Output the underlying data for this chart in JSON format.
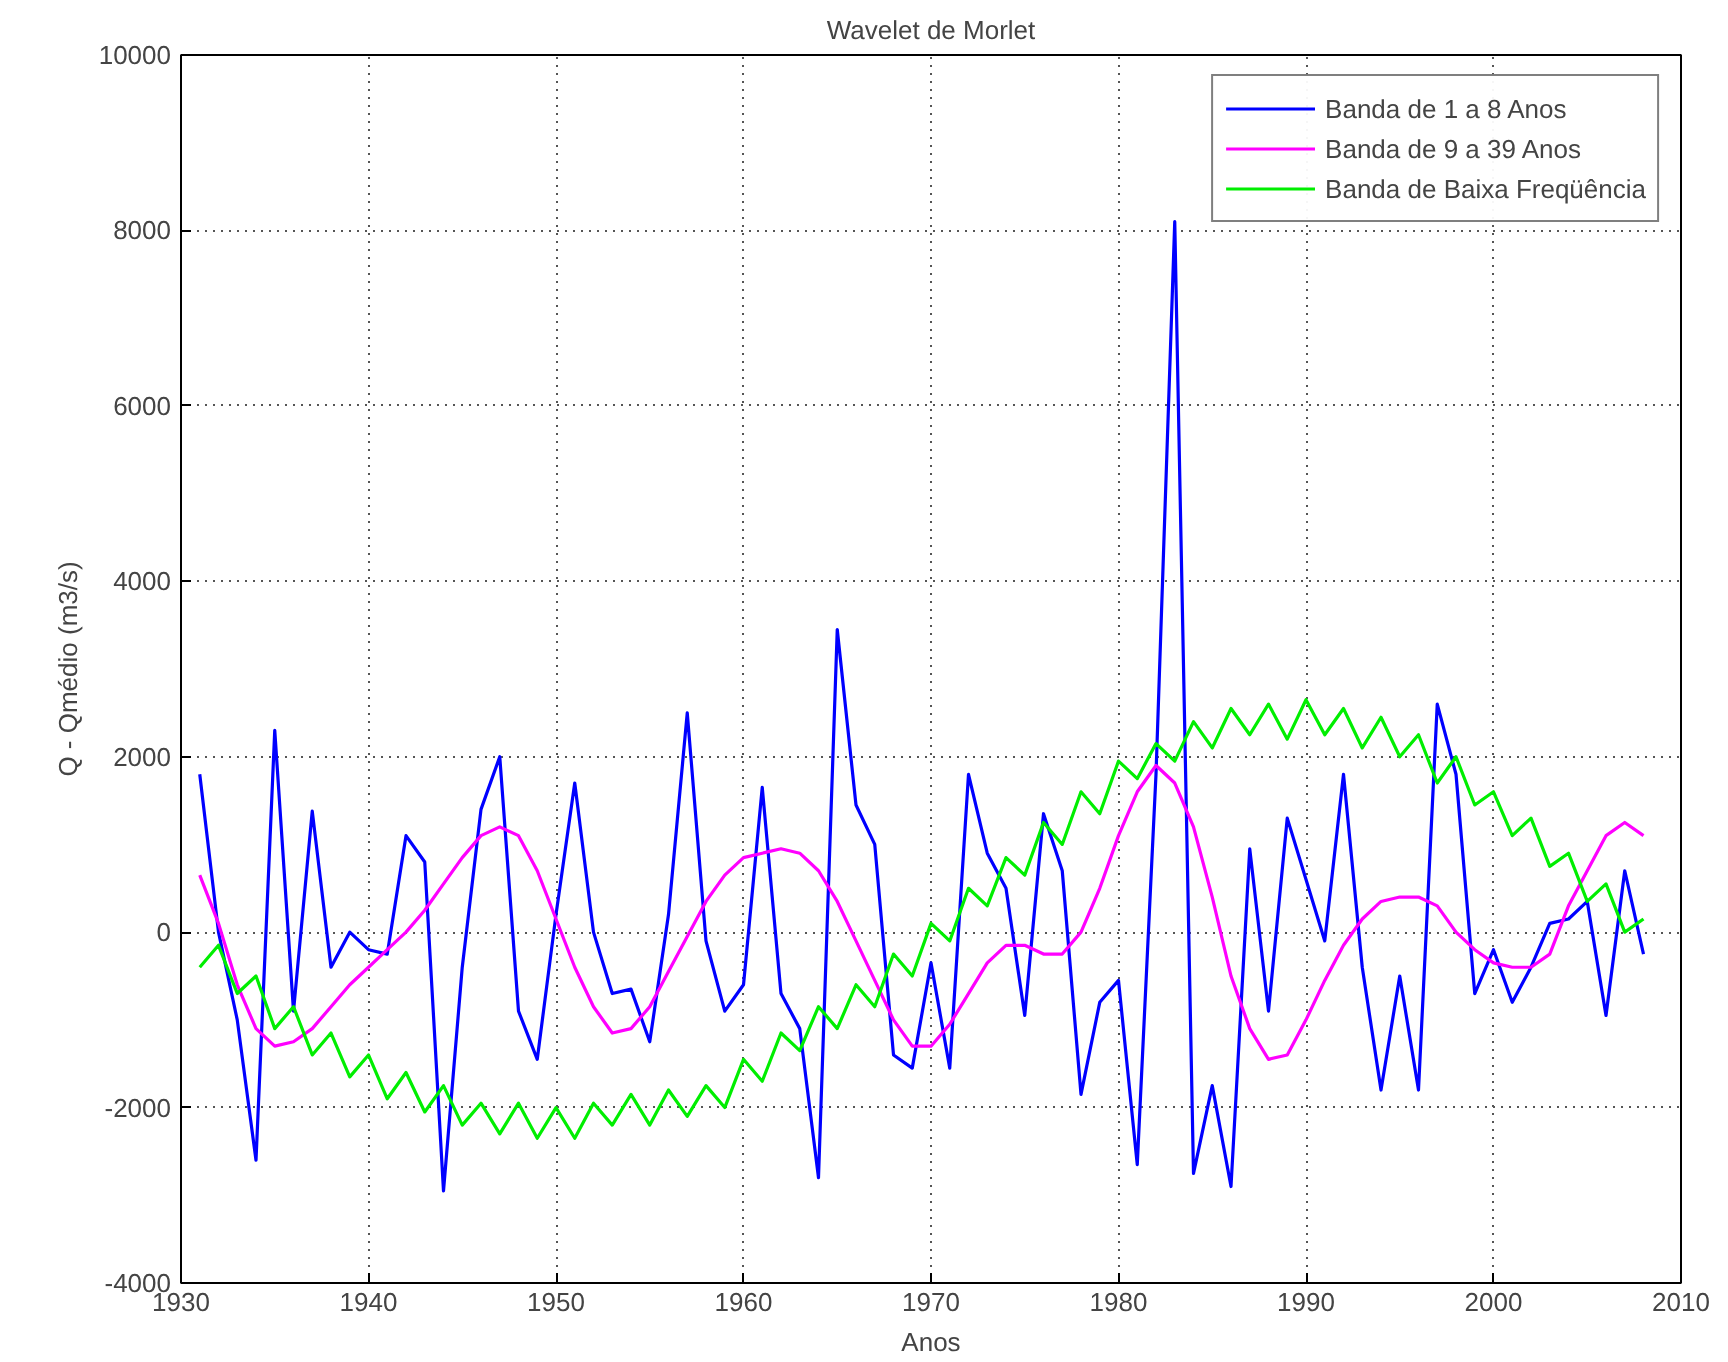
{
  "chart_data": {
    "type": "line",
    "title": "Wavelet de Morlet",
    "xlabel": "Anos",
    "ylabel": "Q - Qmédio (m3/s)",
    "x": [
      1931,
      1932,
      1933,
      1934,
      1935,
      1936,
      1937,
      1938,
      1939,
      1940,
      1941,
      1942,
      1943,
      1944,
      1945,
      1946,
      1947,
      1948,
      1949,
      1950,
      1951,
      1952,
      1953,
      1954,
      1955,
      1956,
      1957,
      1958,
      1959,
      1960,
      1961,
      1962,
      1963,
      1964,
      1965,
      1966,
      1967,
      1968,
      1969,
      1970,
      1971,
      1972,
      1973,
      1974,
      1975,
      1976,
      1977,
      1978,
      1979,
      1980,
      1981,
      1982,
      1983,
      1984,
      1985,
      1986,
      1987,
      1988,
      1989,
      1990,
      1991,
      1992,
      1993,
      1994,
      1995,
      1996,
      1997,
      1998,
      1999,
      2000,
      2001,
      2002,
      2003,
      2004,
      2005,
      2006,
      2007,
      2008
    ],
    "series": [
      {
        "name": "Banda de 1 a 8 Anos",
        "color": "#0000ff",
        "values": [
          1800,
          0,
          -1000,
          -2600,
          2300,
          -900,
          1380,
          -400,
          0,
          -200,
          -250,
          1100,
          800,
          -2950,
          -400,
          1400,
          2000,
          -900,
          -1450,
          200,
          1700,
          0,
          -700,
          -650,
          -1250,
          200,
          2500,
          -100,
          -900,
          -600,
          1650,
          -700,
          -1100,
          -2800,
          3450,
          1450,
          1000,
          -1400,
          -1550,
          -350,
          -1550,
          1800,
          900,
          500,
          -950,
          1350,
          700,
          -1850,
          -800,
          -550,
          -2650,
          1800,
          8100,
          -2750,
          -1750,
          -2900,
          950,
          -900,
          1300,
          600,
          -100,
          1800,
          -400,
          -1800,
          -500,
          -1800,
          2600,
          1800,
          -700,
          -200,
          -800,
          -400,
          100,
          150,
          350,
          -950,
          700,
          -250
        ]
      },
      {
        "name": "Banda de 9 a 39 Anos",
        "color": "#ff00ff",
        "values": [
          650,
          100,
          -600,
          -1100,
          -1300,
          -1250,
          -1100,
          -850,
          -600,
          -400,
          -200,
          0,
          250,
          550,
          850,
          1100,
          1200,
          1100,
          700,
          150,
          -400,
          -850,
          -1150,
          -1100,
          -850,
          -450,
          -50,
          350,
          650,
          850,
          900,
          950,
          900,
          700,
          350,
          -100,
          -550,
          -1000,
          -1300,
          -1300,
          -1050,
          -700,
          -350,
          -150,
          -150,
          -250,
          -250,
          0,
          500,
          1100,
          1600,
          1900,
          1700,
          1200,
          400,
          -500,
          -1100,
          -1450,
          -1400,
          -1000,
          -550,
          -150,
          150,
          350,
          400,
          400,
          300,
          0,
          -200,
          -350,
          -400,
          -400,
          -250,
          300,
          700,
          1100,
          1250,
          1100
        ]
      },
      {
        "name": "Banda de Baixa Freqüência",
        "color": "#00ee00",
        "values": [
          -400,
          -150,
          -700,
          -500,
          -1100,
          -850,
          -1400,
          -1150,
          -1650,
          -1400,
          -1900,
          -1600,
          -2050,
          -1750,
          -2200,
          -1950,
          -2300,
          -1950,
          -2350,
          -2000,
          -2350,
          -1950,
          -2200,
          -1850,
          -2200,
          -1800,
          -2100,
          -1750,
          -2000,
          -1450,
          -1700,
          -1150,
          -1350,
          -850,
          -1100,
          -600,
          -850,
          -250,
          -500,
          100,
          -100,
          500,
          300,
          850,
          650,
          1250,
          1000,
          1600,
          1350,
          1950,
          1750,
          2150,
          1950,
          2400,
          2100,
          2550,
          2250,
          2600,
          2200,
          2650,
          2250,
          2550,
          2100,
          2450,
          2000,
          2250,
          1700,
          2000,
          1450,
          1600,
          1100,
          1300,
          750,
          900,
          350,
          550,
          0,
          150
        ]
      }
    ],
    "xlim": [
      1930,
      2010
    ],
    "xticks": [
      1930,
      1940,
      1950,
      1960,
      1970,
      1980,
      1990,
      2000,
      2010
    ],
    "ylim": [
      -4000,
      10000
    ],
    "yticks": [
      -4000,
      -2000,
      0,
      2000,
      4000,
      6000,
      8000,
      10000
    ],
    "grid": true,
    "legend": "top right",
    "line_style": "solid",
    "marker": "none"
  }
}
